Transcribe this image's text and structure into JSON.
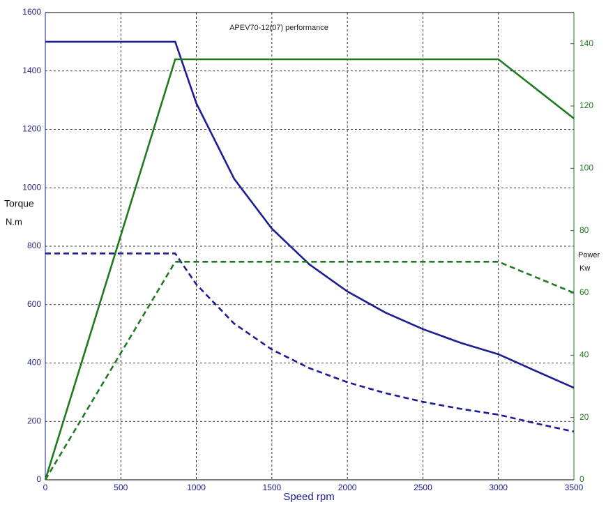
{
  "chart_data": {
    "type": "line",
    "title": "APEV70-12(07) performance",
    "xlabel": "Speed rpm",
    "ylabel": [
      "Torque",
      "N.m"
    ],
    "y2label": [
      "Power",
      "Kw"
    ],
    "x": [
      0,
      860,
      1000,
      1250,
      1500,
      1750,
      2000,
      2250,
      2500,
      2750,
      3000,
      3250,
      3500
    ],
    "series": [
      {
        "color": "#1c1c96",
        "dash": false,
        "axis": "y",
        "values": [
          1500,
          1500,
          1289,
          1031,
          860,
          737,
          645,
          573,
          516,
          469,
          430,
          372,
          315
        ]
      },
      {
        "color": "#1f7a1f",
        "dash": false,
        "axis": "y2",
        "values": [
          0,
          135,
          135,
          135,
          135,
          135,
          135,
          135,
          135,
          135,
          135,
          125.5,
          116
        ]
      },
      {
        "color": "#1c1c96",
        "dash": true,
        "axis": "y",
        "values": [
          775,
          775,
          669,
          535,
          446,
          382,
          334,
          297,
          267,
          243,
          223,
          193,
          165
        ]
      },
      {
        "color": "#1f7a1f",
        "dash": true,
        "axis": "y2",
        "values": [
          0,
          70,
          70,
          70,
          70,
          70,
          70,
          70,
          70,
          70,
          70,
          65,
          60
        ]
      }
    ],
    "xlim": [
      0,
      3500
    ],
    "xticks": [
      0,
      500,
      1000,
      1500,
      2000,
      2500,
      3000,
      3500
    ],
    "ylim": [
      0,
      1600
    ],
    "yticks": [
      0,
      200,
      400,
      600,
      800,
      1000,
      1200,
      1400,
      1600
    ],
    "y2lim": [
      0,
      150
    ],
    "y2ticks": [
      0,
      20,
      40,
      60,
      80,
      100,
      120,
      140
    ],
    "grid": true
  }
}
